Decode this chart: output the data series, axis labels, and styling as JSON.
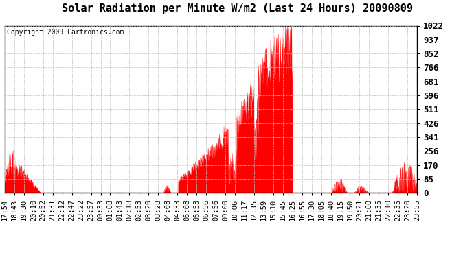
{
  "title": "Solar Radiation per Minute W/m2 (Last 24 Hours) 20090809",
  "copyright": "Copyright 2009 Cartronics.com",
  "y_tick_values": [
    0.0,
    85.2,
    170.3,
    255.5,
    340.7,
    425.8,
    511.0,
    596.2,
    681.3,
    766.5,
    851.7,
    936.8,
    1022.0
  ],
  "ylim": [
    0.0,
    1022.0
  ],
  "fill_color": "#ff0000",
  "line_color": "#ff0000",
  "dashed_line_color": "#ff0000",
  "background_color": "#ffffff",
  "grid_color": "#c0c0c0",
  "title_fontsize": 11,
  "copyright_fontsize": 7,
  "tick_fontsize": 7.5,
  "ytick_fontsize": 9,
  "x_tick_labels": [
    "17:54",
    "18:43",
    "19:30",
    "20:10",
    "20:52",
    "21:31",
    "22:12",
    "22:47",
    "23:22",
    "23:57",
    "00:33",
    "01:08",
    "01:43",
    "02:18",
    "02:53",
    "03:20",
    "03:28",
    "04:08",
    "04:33",
    "05:08",
    "05:53",
    "06:56",
    "07:56",
    "09:00",
    "10:06",
    "11:17",
    "12:35",
    "13:59",
    "15:10",
    "15:45",
    "16:25",
    "16:55",
    "17:30",
    "18:05",
    "18:40",
    "19:15",
    "19:50",
    "20:21",
    "21:00",
    "21:35",
    "22:10",
    "22:35",
    "23:20",
    "23:55"
  ],
  "num_points": 1440,
  "peak_value": 1022.0,
  "figwidth": 6.9,
  "figheight": 3.75,
  "dpi": 100
}
